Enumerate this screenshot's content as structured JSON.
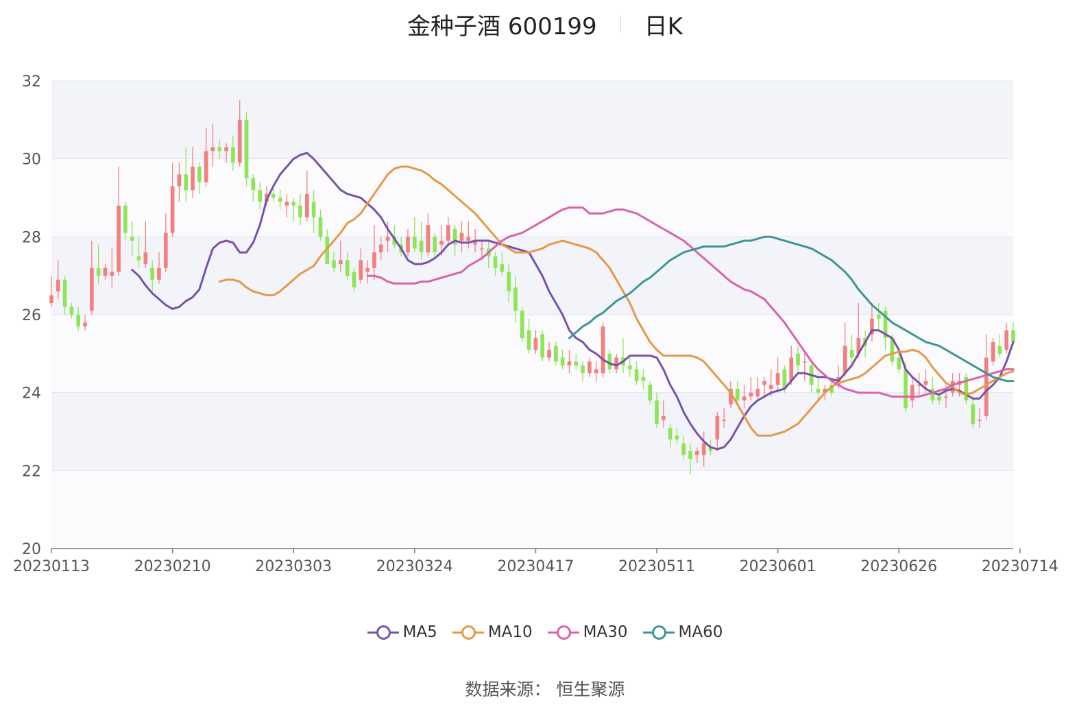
{
  "title": {
    "name": "金种子酒 600199",
    "period": "日K"
  },
  "source": "数据来源： 恒生聚源",
  "colors": {
    "up": "#f28080",
    "down": "#8ee558",
    "ma5": "#7852a8",
    "ma10": "#e59848",
    "ma30": "#d963a8",
    "ma60": "#3d9693"
  },
  "chart_data": {
    "type": "candlestick",
    "ylim": [
      20,
      32
    ],
    "yticks": [
      20,
      22,
      24,
      26,
      28,
      30,
      32
    ],
    "grid": true,
    "legend_position": "bottom",
    "x_ticks": [
      {
        "index": 0,
        "label": "20230113"
      },
      {
        "index": 18,
        "label": "20230210"
      },
      {
        "index": 36,
        "label": "20230303"
      },
      {
        "index": 54,
        "label": "20230324"
      },
      {
        "index": 72,
        "label": "20230417"
      },
      {
        "index": 90,
        "label": "20230511"
      },
      {
        "index": 108,
        "label": "20230601"
      },
      {
        "index": 126,
        "label": "20230626"
      },
      {
        "index": 144,
        "label": "20230714"
      }
    ],
    "candles": [
      [
        26.3,
        26.5,
        26.2,
        27.0
      ],
      [
        26.6,
        26.9,
        26.4,
        27.4
      ],
      [
        26.9,
        26.2,
        26.0,
        27.0
      ],
      [
        26.2,
        26.0,
        25.9,
        26.3
      ],
      [
        26.0,
        25.7,
        25.6,
        26.2
      ],
      [
        25.7,
        25.8,
        25.6,
        26.0
      ],
      [
        26.1,
        27.2,
        26.0,
        27.9
      ],
      [
        27.2,
        27.0,
        26.8,
        27.8
      ],
      [
        27.0,
        27.2,
        26.9,
        27.3
      ],
      [
        27.0,
        27.1,
        26.7,
        27.7
      ],
      [
        27.1,
        28.8,
        27.0,
        29.8
      ],
      [
        28.8,
        28.1,
        27.9,
        28.9
      ],
      [
        28.0,
        27.9,
        27.5,
        28.4
      ],
      [
        27.5,
        27.4,
        27.2,
        28.0
      ],
      [
        27.3,
        27.6,
        27.2,
        28.4
      ],
      [
        27.2,
        26.9,
        26.6,
        27.4
      ],
      [
        26.9,
        27.2,
        26.8,
        27.6
      ],
      [
        27.2,
        28.1,
        27.1,
        28.6
      ],
      [
        28.1,
        29.3,
        28.0,
        29.9
      ],
      [
        29.3,
        29.6,
        28.9,
        29.9
      ],
      [
        29.6,
        29.2,
        28.9,
        30.3
      ],
      [
        29.2,
        29.8,
        29.0,
        30.3
      ],
      [
        29.8,
        29.4,
        29.1,
        29.9
      ],
      [
        29.4,
        30.2,
        29.3,
        30.8
      ],
      [
        30.2,
        30.3,
        29.8,
        30.9
      ],
      [
        30.3,
        30.2,
        30.0,
        30.5
      ],
      [
        30.2,
        30.3,
        29.9,
        30.4
      ],
      [
        30.3,
        29.9,
        29.7,
        30.6
      ],
      [
        29.9,
        31.0,
        29.8,
        31.5
      ],
      [
        31.0,
        29.5,
        29.3,
        31.2
      ],
      [
        29.5,
        29.2,
        28.9,
        29.6
      ],
      [
        29.2,
        28.9,
        28.7,
        29.4
      ],
      [
        28.9,
        29.1,
        28.8,
        29.3
      ],
      [
        29.1,
        29.0,
        28.9,
        29.3
      ],
      [
        29.0,
        28.9,
        28.7,
        29.2
      ],
      [
        28.8,
        28.9,
        28.5,
        29.1
      ],
      [
        28.9,
        28.8,
        28.4,
        29.0
      ],
      [
        28.8,
        28.5,
        28.3,
        29.1
      ],
      [
        28.5,
        29.1,
        28.4,
        29.7
      ],
      [
        28.9,
        28.5,
        28.1,
        29.2
      ],
      [
        28.5,
        28.0,
        27.9,
        28.7
      ],
      [
        28.0,
        27.3,
        27.3,
        28.2
      ],
      [
        27.4,
        27.2,
        27.1,
        27.6
      ],
      [
        27.3,
        27.4,
        27.1,
        27.9
      ],
      [
        27.4,
        27.0,
        26.9,
        27.6
      ],
      [
        27.1,
        26.7,
        26.6,
        27.2
      ],
      [
        26.9,
        27.4,
        26.8,
        27.7
      ],
      [
        27.1,
        27.2,
        26.8,
        27.4
      ],
      [
        27.2,
        27.6,
        26.9,
        28.3
      ],
      [
        27.6,
        27.8,
        27.4,
        28.0
      ],
      [
        27.9,
        28.0,
        27.6,
        28.4
      ],
      [
        28.0,
        27.8,
        27.7,
        28.3
      ],
      [
        27.8,
        27.6,
        27.5,
        28.0
      ],
      [
        27.6,
        28.0,
        27.5,
        28.2
      ],
      [
        28.0,
        27.7,
        27.6,
        28.5
      ],
      [
        27.9,
        27.6,
        27.4,
        28.4
      ],
      [
        27.6,
        28.3,
        27.5,
        28.6
      ],
      [
        28.0,
        27.6,
        27.5,
        28.1
      ],
      [
        27.8,
        27.9,
        27.5,
        28.3
      ],
      [
        27.9,
        28.3,
        27.8,
        28.5
      ],
      [
        28.2,
        27.8,
        27.5,
        28.3
      ],
      [
        27.9,
        28.1,
        27.6,
        28.4
      ],
      [
        27.9,
        28.0,
        27.7,
        28.4
      ],
      [
        27.8,
        27.9,
        27.6,
        28.2
      ],
      [
        27.7,
        27.7,
        27.4,
        27.9
      ],
      [
        27.7,
        27.5,
        27.2,
        27.9
      ],
      [
        27.5,
        27.2,
        27.0,
        27.6
      ],
      [
        27.3,
        27.1,
        27.0,
        27.6
      ],
      [
        27.1,
        26.6,
        26.3,
        27.3
      ],
      [
        26.7,
        26.1,
        25.8,
        27.0
      ],
      [
        26.1,
        25.4,
        25.3,
        26.2
      ],
      [
        25.6,
        25.1,
        25.0,
        25.9
      ],
      [
        25.1,
        25.4,
        25.0,
        25.6
      ],
      [
        25.5,
        24.9,
        24.8,
        25.6
      ],
      [
        24.9,
        25.1,
        24.8,
        25.3
      ],
      [
        25.2,
        24.8,
        24.7,
        25.3
      ],
      [
        24.9,
        24.7,
        24.6,
        25.1
      ],
      [
        24.7,
        24.8,
        24.5,
        25.1
      ],
      [
        24.8,
        24.7,
        24.6,
        25.0
      ],
      [
        24.7,
        24.5,
        24.3,
        24.8
      ],
      [
        24.5,
        24.8,
        24.4,
        24.9
      ],
      [
        24.5,
        24.6,
        24.3,
        24.8
      ],
      [
        24.5,
        25.7,
        24.4,
        25.8
      ],
      [
        25.0,
        24.6,
        24.5,
        25.1
      ],
      [
        24.6,
        24.9,
        24.5,
        25.0
      ],
      [
        24.9,
        24.7,
        24.5,
        25.4
      ],
      [
        24.7,
        24.6,
        24.4,
        24.9
      ],
      [
        24.6,
        24.3,
        24.2,
        24.8
      ],
      [
        24.4,
        24.3,
        24.1,
        24.6
      ],
      [
        24.2,
        23.8,
        23.7,
        24.3
      ],
      [
        23.8,
        23.2,
        23.1,
        24.0
      ],
      [
        23.3,
        23.4,
        23.1,
        23.8
      ],
      [
        23.1,
        22.8,
        22.6,
        23.2
      ],
      [
        22.9,
        22.8,
        22.7,
        23.1
      ],
      [
        22.7,
        22.4,
        22.3,
        22.9
      ],
      [
        22.5,
        22.3,
        21.9,
        22.7
      ],
      [
        22.4,
        22.5,
        22.2,
        22.6
      ],
      [
        22.4,
        22.7,
        22.1,
        23.0
      ],
      [
        22.6,
        22.5,
        22.4,
        22.8
      ],
      [
        22.8,
        23.4,
        22.5,
        23.5
      ],
      [
        23.3,
        23.3,
        23.1,
        23.6
      ],
      [
        23.7,
        24.1,
        23.6,
        24.3
      ],
      [
        24.1,
        23.8,
        23.7,
        24.3
      ],
      [
        23.8,
        23.9,
        23.6,
        24.2
      ],
      [
        23.9,
        24.0,
        23.8,
        24.4
      ],
      [
        23.9,
        24.1,
        23.8,
        24.4
      ],
      [
        24.2,
        24.3,
        23.9,
        24.4
      ],
      [
        24.1,
        24.2,
        23.9,
        24.6
      ],
      [
        24.2,
        24.5,
        24.0,
        24.9
      ],
      [
        24.6,
        24.1,
        24.0,
        24.7
      ],
      [
        24.3,
        24.9,
        24.2,
        25.2
      ],
      [
        25.0,
        24.7,
        24.5,
        25.2
      ],
      [
        24.8,
        24.8,
        24.3,
        25.0
      ],
      [
        24.7,
        24.2,
        24.0,
        24.8
      ],
      [
        24.1,
        24.0,
        23.8,
        24.5
      ],
      [
        24.0,
        24.1,
        23.8,
        24.2
      ],
      [
        24.2,
        24.0,
        23.9,
        24.3
      ],
      [
        24.2,
        24.4,
        24.1,
        24.7
      ],
      [
        24.5,
        25.2,
        24.4,
        25.8
      ],
      [
        25.1,
        24.9,
        24.7,
        25.5
      ],
      [
        25.0,
        25.4,
        24.9,
        26.3
      ],
      [
        25.4,
        25.2,
        24.9,
        25.6
      ],
      [
        25.5,
        25.9,
        25.3,
        26.3
      ],
      [
        26.0,
        25.9,
        25.6,
        26.3
      ],
      [
        26.1,
        25.4,
        25.1,
        26.2
      ],
      [
        25.4,
        24.8,
        24.7,
        25.5
      ],
      [
        24.9,
        24.6,
        24.5,
        25.1
      ],
      [
        24.6,
        23.6,
        23.5,
        24.8
      ],
      [
        23.8,
        24.2,
        23.6,
        24.4
      ],
      [
        24.2,
        24.2,
        23.9,
        24.5
      ],
      [
        24.2,
        24.3,
        24.0,
        24.6
      ],
      [
        24.1,
        23.8,
        23.7,
        24.4
      ],
      [
        23.9,
        23.8,
        23.7,
        24.1
      ],
      [
        23.9,
        23.9,
        23.6,
        24.2
      ],
      [
        24.0,
        24.3,
        23.9,
        24.5
      ],
      [
        24.2,
        24.3,
        23.9,
        24.5
      ],
      [
        24.4,
        23.8,
        23.7,
        24.5
      ],
      [
        23.7,
        23.2,
        23.1,
        23.9
      ],
      [
        23.3,
        23.3,
        23.1,
        23.6
      ],
      [
        23.4,
        24.9,
        23.3,
        25.5
      ],
      [
        24.8,
        25.3,
        24.7,
        25.4
      ],
      [
        25.2,
        25.0,
        24.9,
        25.5
      ],
      [
        25.1,
        25.6,
        25.0,
        25.8
      ],
      [
        25.6,
        25.3,
        25.2,
        25.8
      ]
    ],
    "series": [
      {
        "name": "MA5",
        "color": "#7852a8",
        "values": [
          27.15,
          27.0,
          26.75,
          26.55,
          26.4,
          26.25,
          26.15,
          26.2,
          26.35,
          26.45,
          26.65,
          27.2,
          27.7,
          27.85,
          27.9,
          27.85,
          27.6,
          27.6,
          27.85,
          28.3,
          28.95,
          29.3,
          29.6,
          29.8,
          30.0,
          30.1,
          30.15,
          30.0,
          29.8,
          29.6,
          29.4,
          29.2,
          29.1,
          29.05,
          29.0,
          28.85,
          28.7,
          28.5,
          28.2,
          27.95,
          27.7,
          27.4,
          27.3,
          27.3,
          27.35,
          27.45,
          27.6,
          27.8,
          27.9,
          27.85,
          27.85,
          27.9,
          27.9,
          27.9,
          27.85,
          27.8,
          27.75,
          27.7,
          27.65,
          27.6,
          27.3,
          27.0,
          26.6,
          26.3,
          26.0,
          25.6,
          25.4,
          25.3,
          25.1,
          25.0,
          24.85,
          24.75,
          24.7,
          24.8,
          24.95,
          24.95,
          24.95,
          24.95,
          24.9,
          24.6,
          24.2,
          23.9,
          23.5,
          23.2,
          22.95,
          22.75,
          22.6,
          22.55,
          22.6,
          22.8,
          23.1,
          23.4,
          23.65,
          23.8,
          23.9,
          24.0,
          24.05,
          24.1,
          24.3,
          24.5,
          24.5,
          24.45,
          24.4,
          24.4,
          24.35,
          24.3,
          24.5,
          24.7,
          25.0,
          25.3,
          25.6,
          25.6,
          25.5,
          25.4,
          25.1,
          24.6,
          24.4,
          24.25,
          24.1,
          24.0,
          23.95,
          24.05,
          24.1,
          24.05,
          23.95,
          23.85,
          23.85,
          24.05,
          24.2,
          24.4,
          24.8,
          25.3
        ]
      },
      {
        "name": "MA10",
        "color": "#e59848",
        "values": [
          26.85,
          26.9,
          26.9,
          26.85,
          26.7,
          26.6,
          26.55,
          26.5,
          26.5,
          26.6,
          26.75,
          26.9,
          27.05,
          27.15,
          27.25,
          27.5,
          27.7,
          27.9,
          28.1,
          28.35,
          28.45,
          28.6,
          28.85,
          29.1,
          29.35,
          29.6,
          29.75,
          29.8,
          29.8,
          29.75,
          29.7,
          29.6,
          29.45,
          29.35,
          29.2,
          29.05,
          28.9,
          28.75,
          28.6,
          28.4,
          28.2,
          28.0,
          27.8,
          27.7,
          27.6,
          27.6,
          27.6,
          27.65,
          27.7,
          27.8,
          27.85,
          27.9,
          27.85,
          27.8,
          27.75,
          27.7,
          27.6,
          27.4,
          27.2,
          26.9,
          26.6,
          26.3,
          25.9,
          25.6,
          25.3,
          25.1,
          24.95,
          24.95,
          24.95,
          24.95,
          24.95,
          24.9,
          24.8,
          24.6,
          24.4,
          24.2,
          24.0,
          23.7,
          23.4,
          23.1,
          22.9,
          22.9,
          22.9,
          22.95,
          23.0,
          23.1,
          23.2,
          23.4,
          23.6,
          23.8,
          24.0,
          24.15,
          24.25,
          24.3,
          24.35,
          24.4,
          24.5,
          24.65,
          24.8,
          24.95,
          25.0,
          25.05,
          25.05,
          25.1,
          25.05,
          24.9,
          24.65,
          24.45,
          24.25,
          24.15,
          24.0,
          23.95,
          24.0,
          24.1,
          24.2,
          24.3,
          24.4,
          24.5,
          24.55
        ]
      },
      {
        "name": "MA30",
        "color": "#d963a8",
        "values": [
          27.0,
          27.0,
          26.95,
          26.85,
          26.8,
          26.8,
          26.8,
          26.8,
          26.85,
          26.85,
          26.9,
          26.95,
          27.0,
          27.05,
          27.1,
          27.25,
          27.35,
          27.45,
          27.6,
          27.75,
          27.9,
          28.0,
          28.05,
          28.1,
          28.2,
          28.3,
          28.4,
          28.5,
          28.6,
          28.7,
          28.75,
          28.75,
          28.75,
          28.6,
          28.6,
          28.6,
          28.65,
          28.7,
          28.7,
          28.65,
          28.6,
          28.5,
          28.4,
          28.3,
          28.2,
          28.1,
          28.0,
          27.9,
          27.75,
          27.6,
          27.45,
          27.3,
          27.15,
          27.0,
          26.85,
          26.75,
          26.65,
          26.6,
          26.5,
          26.4,
          26.2,
          26.0,
          25.8,
          25.55,
          25.3,
          25.05,
          24.8,
          24.6,
          24.45,
          24.3,
          24.2,
          24.1,
          24.05,
          24.0,
          24.0,
          24.0,
          24.0,
          23.95,
          23.9,
          23.9,
          23.9,
          23.9,
          23.9,
          23.95,
          24.0,
          24.05,
          24.1,
          24.2,
          24.25,
          24.3,
          24.35,
          24.4,
          24.45,
          24.5,
          24.55,
          24.6,
          24.6
        ]
      },
      {
        "name": "MA60",
        "color": "#3d9693",
        "values": [
          25.4,
          25.55,
          25.7,
          25.8,
          25.95,
          26.05,
          26.2,
          26.35,
          26.45,
          26.55,
          26.7,
          26.85,
          26.95,
          27.1,
          27.25,
          27.4,
          27.5,
          27.6,
          27.65,
          27.7,
          27.75,
          27.75,
          27.75,
          27.75,
          27.8,
          27.85,
          27.9,
          27.9,
          27.95,
          28.0,
          28.0,
          27.95,
          27.9,
          27.85,
          27.8,
          27.75,
          27.7,
          27.6,
          27.5,
          27.4,
          27.25,
          27.1,
          26.9,
          26.65,
          26.45,
          26.25,
          26.1,
          25.95,
          25.8,
          25.7,
          25.6,
          25.5,
          25.4,
          25.3,
          25.25,
          25.2,
          25.1,
          25.0,
          24.9,
          24.8,
          24.7,
          24.6,
          24.5,
          24.4,
          24.35,
          24.3,
          24.3
        ]
      }
    ]
  }
}
